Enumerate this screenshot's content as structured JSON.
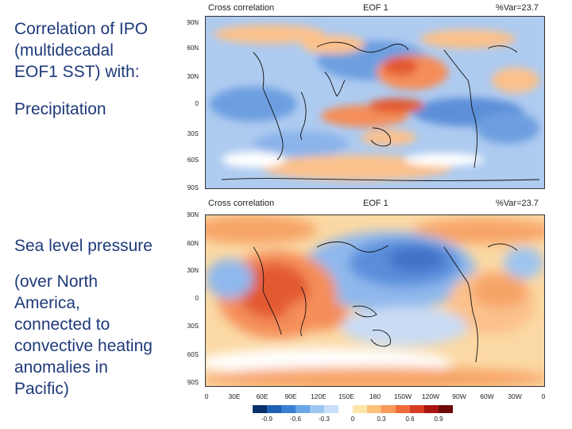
{
  "caption": {
    "lines": [
      "Correlation of IPO",
      "(multidecadal",
      "EOF1 SST) with:"
    ]
  },
  "precip_label": "Precipitation",
  "slp_label": "Sea level pressure",
  "slp_note": {
    "lines": [
      "(over North",
      "America,",
      "connected to",
      "convective heating",
      "anomalies in",
      "Pacific)"
    ]
  },
  "panels": [
    {
      "left_title": "Cross correlation",
      "center_title": "EOF 1",
      "right_title": "%Var=23.7",
      "lat_ticks": [
        "90N",
        "60N",
        "30N",
        "0",
        "30S",
        "60S",
        "90S"
      ]
    },
    {
      "left_title": "Cross correlation",
      "center_title": "EOF 1",
      "right_title": "%Var=23.7",
      "lat_ticks": [
        "90N",
        "60N",
        "30N",
        "0",
        "30S",
        "60S",
        "90S"
      ]
    }
  ],
  "lon_ticks": [
    "0",
    "30E",
    "60E",
    "90E",
    "120E",
    "150E",
    "180",
    "150W",
    "120W",
    "90W",
    "60W",
    "30W",
    "0"
  ],
  "colorbar": {
    "colors": [
      "#08306b",
      "#1f5fb4",
      "#3a7fd4",
      "#6aa5e8",
      "#9cc7f0",
      "#c8e0f8",
      "#ffffff",
      "#fde6a8",
      "#fcc07a",
      "#f99a5a",
      "#ef6b3a",
      "#d63a22",
      "#a8150f",
      "#6e0a0a"
    ],
    "labels": [
      "-0.9",
      "-0.6",
      "-0.3",
      "0",
      "0.3",
      "0.6",
      "0.9"
    ]
  }
}
